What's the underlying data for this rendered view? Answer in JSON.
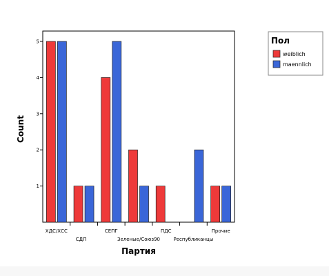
{
  "chart_data": {
    "type": "bar",
    "categories": [
      "ХДС/ХСС",
      "СДП",
      "СЕПГ",
      "Зеленые/Союз90",
      "ПДС",
      "Республиканцы",
      "Прочие"
    ],
    "series": [
      {
        "name": "weiblich",
        "values": [
          5,
          1,
          4,
          2,
          1,
          0,
          1
        ],
        "color": "#ee3a3a"
      },
      {
        "name": "maennlich",
        "values": [
          5,
          1,
          5,
          1,
          0,
          2,
          1
        ],
        "color": "#3a66d8"
      }
    ],
    "xlabel": "Партия",
    "ylabel": "Count",
    "yticks": [
      1,
      2,
      3,
      4,
      5
    ],
    "ylim": [
      0,
      5.5
    ],
    "grid": false,
    "legend": {
      "title": "Пол",
      "placement": "top-right"
    }
  }
}
